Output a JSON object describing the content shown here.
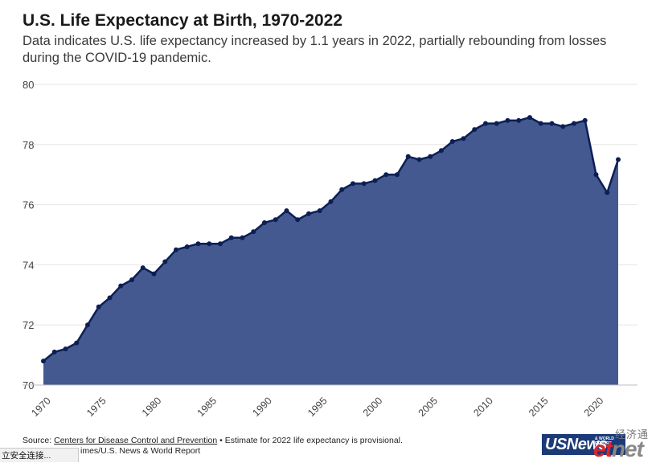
{
  "title": "U.S. Life Expectancy at Birth, 1970-2022",
  "subtitle": "Data indicates U.S. life expectancy increased by 1.1 years in 2022, partially rebounding from losses during the COVID-19 pandemic.",
  "source": {
    "prefix": "Source: ",
    "link_text": "Centers for Disease Control and Prevention",
    "suffix": " • Estimate for 2022 life expectancy is provisional.",
    "credit": "Credit: Lazaro Gamio/The New York Times/U.S. News & World Report",
    "credit_visible": "imes/U.S. News & World Report"
  },
  "status_bar": {
    "text": "立安全连接..."
  },
  "logo": {
    "text": "USNews",
    "small_text": "& WORLD REPORT"
  },
  "watermark": {
    "top": "经济通",
    "big_left": "et",
    "big_right": "net"
  },
  "colors": {
    "area_fill": "#44598f",
    "line": "#0c1f55",
    "grid": "#e6e6e6",
    "axis_text": "#444444"
  },
  "chart_data": {
    "type": "area",
    "title": "U.S. Life Expectancy at Birth, 1970-2022",
    "xlabel": "",
    "ylabel": "",
    "ylim": [
      70,
      80
    ],
    "xlim": [
      1970,
      2022
    ],
    "grid": true,
    "x_ticks": [
      1970,
      1975,
      1980,
      1985,
      1990,
      1995,
      2000,
      2005,
      2010,
      2015,
      2020
    ],
    "y_ticks": [
      70,
      72,
      74,
      76,
      78,
      80
    ],
    "x": [
      1970,
      1971,
      1972,
      1973,
      1974,
      1975,
      1976,
      1977,
      1978,
      1979,
      1980,
      1981,
      1982,
      1983,
      1984,
      1985,
      1986,
      1987,
      1988,
      1989,
      1990,
      1991,
      1992,
      1993,
      1994,
      1995,
      1996,
      1997,
      1998,
      1999,
      2000,
      2001,
      2002,
      2003,
      2004,
      2005,
      2006,
      2007,
      2008,
      2009,
      2010,
      2011,
      2012,
      2013,
      2014,
      2015,
      2016,
      2017,
      2018,
      2019,
      2020,
      2021,
      2022
    ],
    "values": [
      70.8,
      71.1,
      71.2,
      71.4,
      72.0,
      72.6,
      72.9,
      73.3,
      73.5,
      73.9,
      73.7,
      74.1,
      74.5,
      74.6,
      74.7,
      74.7,
      74.7,
      74.9,
      74.9,
      75.1,
      75.4,
      75.5,
      75.8,
      75.5,
      75.7,
      75.8,
      76.1,
      76.5,
      76.7,
      76.7,
      76.8,
      77.0,
      77.0,
      77.6,
      77.5,
      77.6,
      77.8,
      78.1,
      78.2,
      78.5,
      78.7,
      78.7,
      78.8,
      78.8,
      78.9,
      78.7,
      78.7,
      78.6,
      78.7,
      78.8,
      77.0,
      76.4,
      77.5
    ]
  }
}
